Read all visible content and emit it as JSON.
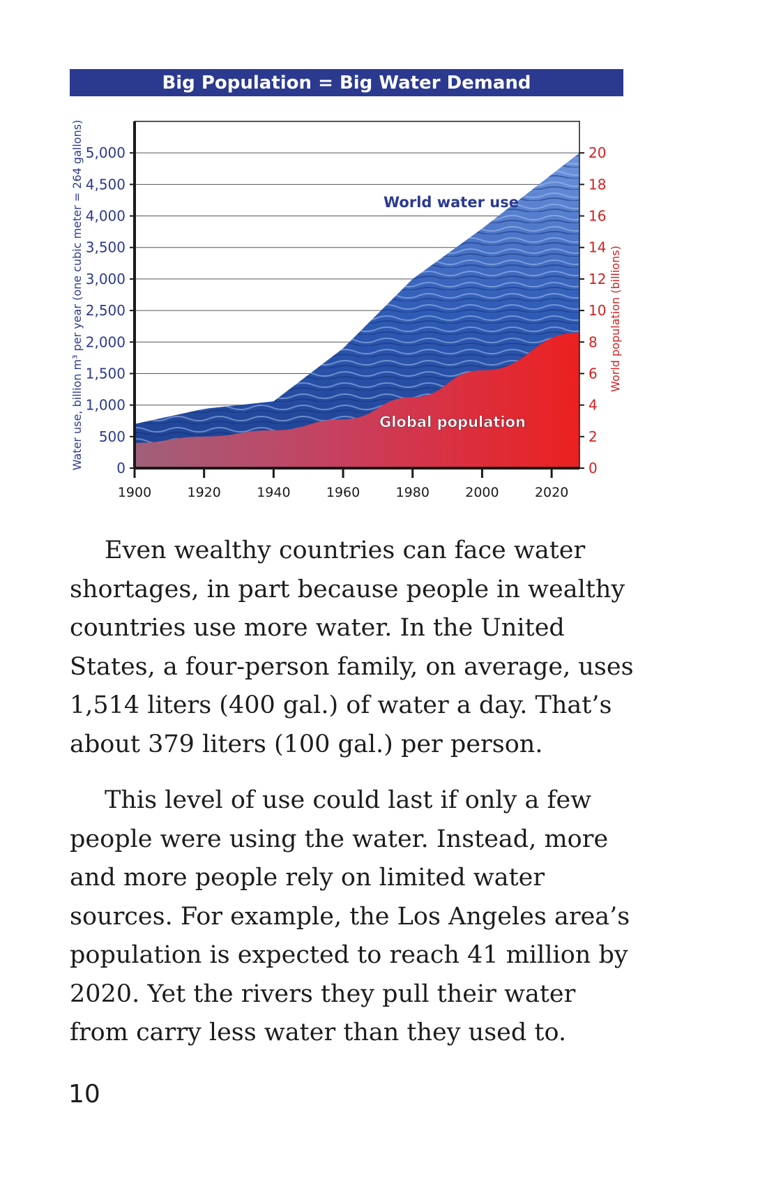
{
  "chart_data": {
    "type": "area",
    "title": "Big Population = Big Water Demand",
    "ylabel": "Water use, billion m³ per year (one cubic meter = 264 gallons)",
    "y2label": "World population (billions)",
    "x_ticks": [
      "1900",
      "1920",
      "1940",
      "1960",
      "1980",
      "2000",
      "2020"
    ],
    "y_ticks": [
      "0",
      "500",
      "1,000",
      "1,500",
      "2,000",
      "2,500",
      "3,000",
      "3,500",
      "4,000",
      "4,500",
      "5,000"
    ],
    "y2_ticks": [
      "0",
      "2",
      "4",
      "6",
      "8",
      "10",
      "12",
      "14",
      "16",
      "18",
      "20"
    ],
    "xlim": [
      1900,
      2028
    ],
    "ylim": [
      0,
      5500
    ],
    "y2lim": [
      0,
      22
    ],
    "series": [
      {
        "name": "World water use",
        "axis": "left",
        "color": "#2f5fb8",
        "x": [
          1900,
          1920,
          1940,
          1960,
          1980,
          2000,
          2028
        ],
        "y": [
          700,
          940,
          1060,
          1900,
          3000,
          3800,
          5000
        ]
      },
      {
        "name": "Global population",
        "axis": "right",
        "color": "#e23030",
        "x": [
          1900,
          1920,
          1940,
          1960,
          1980,
          2000,
          2028
        ],
        "y": [
          1.6,
          2.0,
          2.4,
          3.1,
          4.5,
          6.2,
          8.6
        ]
      }
    ],
    "grid": true,
    "left_axis_color": "#2b3a8f",
    "right_axis_color": "#d42020"
  },
  "paragraphs": [
    "Even wealthy countries can face water shortages, in part because people in wealthy countries use more water. In the United States, a four-person family, on average, uses 1,514 liters (400 gal.) of water a day. That’s about 379 liters (100 gal.) per person.",
    "This level of use could last if only a few people were using the water. Instead, more and more people rely on limited water sources. For example, the Los Angeles area’s population is expected to reach 41 million by 2020. Yet the rivers they pull their water from carry less water than they used to."
  ],
  "page_number": "10"
}
